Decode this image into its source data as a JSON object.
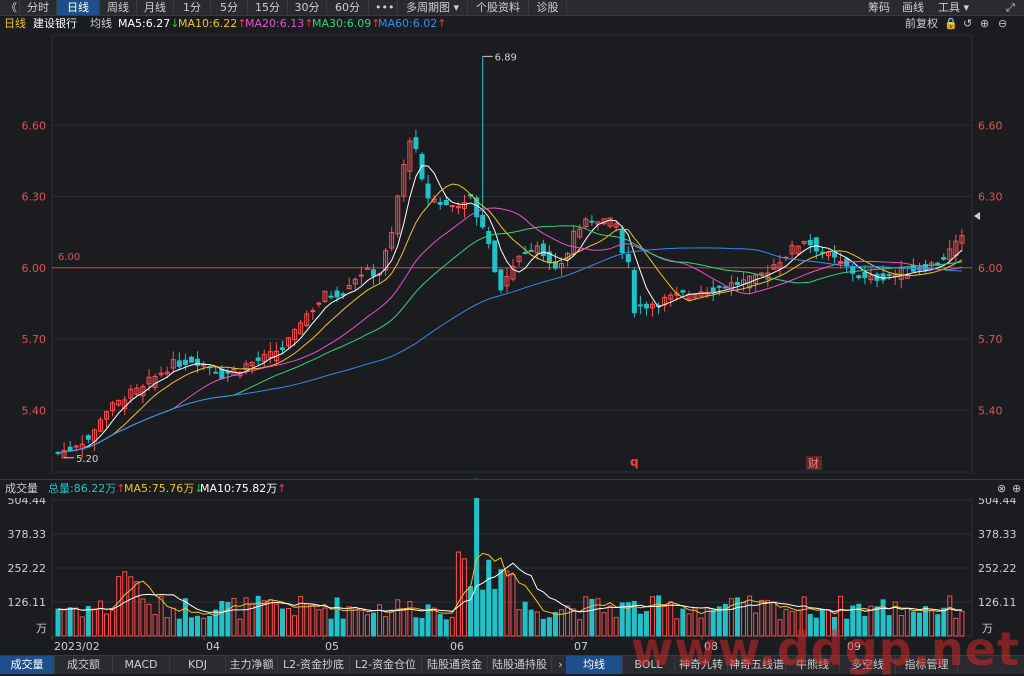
{
  "toolbar": {
    "back_glyph": "《",
    "tabs": [
      {
        "label": "分时"
      },
      {
        "label": "日线",
        "active": true
      },
      {
        "label": "周线"
      },
      {
        "label": "月线"
      },
      {
        "label": "1分"
      },
      {
        "label": "5分"
      },
      {
        "label": "15分"
      },
      {
        "label": "30分"
      },
      {
        "label": "60分"
      },
      {
        "label": "•••"
      },
      {
        "label": "多周期图 ▾"
      },
      {
        "label": "个股资料"
      },
      {
        "label": "诊股"
      }
    ],
    "right_items": [
      "筹码",
      "画线",
      "工具 ▾"
    ],
    "expand_glyph": "⤢"
  },
  "header": {
    "period_label": "日线",
    "stock_name": "建设银行",
    "ma_label": "均线",
    "ma_items": [
      {
        "text": "MA5:6.27",
        "arrow": "↓",
        "color": "#ffffff",
        "arrow_color": "#26c940"
      },
      {
        "text": "MA10:6.22",
        "arrow": "↑",
        "color": "#f2c21d",
        "arrow_color": "#ff3b3b"
      },
      {
        "text": "MA20:6.13",
        "arrow": "↑",
        "color": "#e84fd4",
        "arrow_color": "#ff3b3b"
      },
      {
        "text": "MA30:6.09",
        "arrow": "↑",
        "color": "#2fd37c",
        "arrow_color": "#ff3b3b"
      },
      {
        "text": "MA60:6.02",
        "arrow": "↑",
        "color": "#2f8df0",
        "arrow_color": "#ff3b3b"
      }
    ],
    "fuquan_label": "前复权",
    "tool_icons": [
      "🔒",
      "↺",
      "⊕",
      "⊖"
    ]
  },
  "colors": {
    "up": "#ff4d4d",
    "down": "#22c1c8",
    "grid": "#2c2d33",
    "ref_line": "#d33a3a"
  },
  "chart_data": {
    "type": "candlestick",
    "price_axis": {
      "ticks": [
        5.4,
        5.7,
        6.0,
        6.3,
        6.6
      ],
      "labels": [
        "5.40",
        "5.70",
        "6.00",
        "6.30",
        "6.60"
      ],
      "ylim": [
        5.14,
        6.98
      ]
    },
    "ref_price": {
      "value": 6.0,
      "label": "6.00"
    },
    "max_label": "6.89",
    "min_label": "5.20",
    "x_labels": [
      "2023/02",
      "04",
      "05",
      "06",
      "07",
      "08",
      "09"
    ],
    "markers": [
      {
        "text": "q"
      },
      {
        "text": "财"
      }
    ],
    "volume_axis": {
      "ticks": [
        126.11,
        252.22,
        378.33,
        504.44
      ],
      "labels": [
        "126.11",
        "252.22",
        "378.33",
        "504.44"
      ],
      "unit": "万",
      "ylim": [
        0,
        504.44
      ]
    }
  },
  "volume_header": {
    "label": "成交量",
    "items": [
      {
        "text": "总量:86.22万",
        "arrow": "↑",
        "color": "#22c1c8",
        "arrow_color": "#ff3b3b"
      },
      {
        "text": "MA5:75.76万",
        "arrow": "↓",
        "color": "#f2c21d",
        "arrow_color": "#26c940"
      },
      {
        "text": "MA10:75.82万",
        "arrow": "↑",
        "color": "#ffffff",
        "arrow_color": "#ff3b3b"
      }
    ],
    "icons": [
      "⊗",
      "⊕"
    ]
  },
  "bottom_tabs_left": [
    {
      "label": "成交量",
      "active": true
    },
    {
      "label": "成交额"
    },
    {
      "label": "MACD"
    },
    {
      "label": "KDJ"
    },
    {
      "label": "主力净额"
    },
    {
      "label": "L2-资金抄底"
    },
    {
      "label": "L2-资金仓位"
    },
    {
      "label": "陆股通资金"
    },
    {
      "label": "陆股通持股"
    },
    {
      "label": "›"
    }
  ],
  "bottom_tabs_right": [
    {
      "label": "均线",
      "active": true
    },
    {
      "label": "BOLL"
    },
    {
      "label": "神奇九转"
    },
    {
      "label": "神奇五线谱"
    },
    {
      "label": "牛熊线"
    },
    {
      "label": "多空线"
    },
    {
      "label": "指标管理"
    }
  ],
  "watermark": "www.ddgp.net"
}
